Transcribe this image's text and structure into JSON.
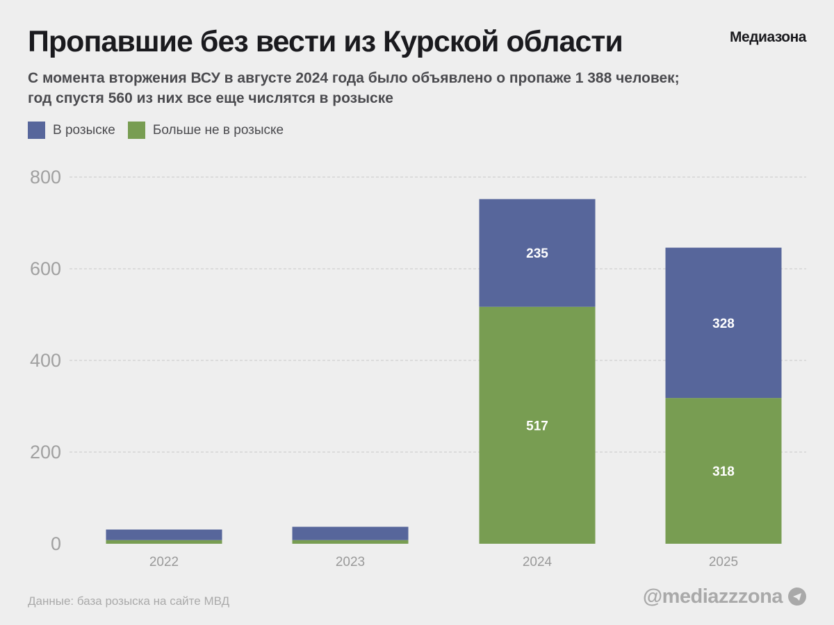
{
  "header": {
    "title": "Пропавшие без вести из Курской области",
    "brand": "Медиазона",
    "subtitle_line1": "С момента вторжения ВСУ в августе 2024 года было объявлено о пропаже 1 388 человек;",
    "subtitle_line2": "год спустя 560 из них все еще числятся в розыске"
  },
  "legend": [
    {
      "label": "В розыске",
      "color": "#57669b"
    },
    {
      "label": "Больше не в розыске",
      "color": "#789d52"
    }
  ],
  "footer": {
    "source": "Данные: база розыска на сайте МВД",
    "handle": "@mediazzzona",
    "handle_icon": "telegram-icon"
  },
  "chart_data": {
    "type": "bar",
    "stacked": true,
    "categories": [
      "2022",
      "2023",
      "2024",
      "2025"
    ],
    "series": [
      {
        "name": "Больше не в розыске",
        "color": "#789d52",
        "values": [
          8,
          8,
          517,
          318
        ],
        "labels": [
          "",
          "",
          "517",
          "318"
        ]
      },
      {
        "name": "В розыске",
        "color": "#57669b",
        "values": [
          23,
          29,
          235,
          328
        ],
        "labels": [
          "",
          "",
          "235",
          "328"
        ]
      }
    ],
    "yticks": [
      "0",
      "200",
      "400",
      "600",
      "800"
    ],
    "ylim": [
      0,
      800
    ],
    "grid": true,
    "title": "Пропавшие без вести из Курской области",
    "xlabel": "",
    "ylabel": "",
    "legend_position": "top-left"
  }
}
